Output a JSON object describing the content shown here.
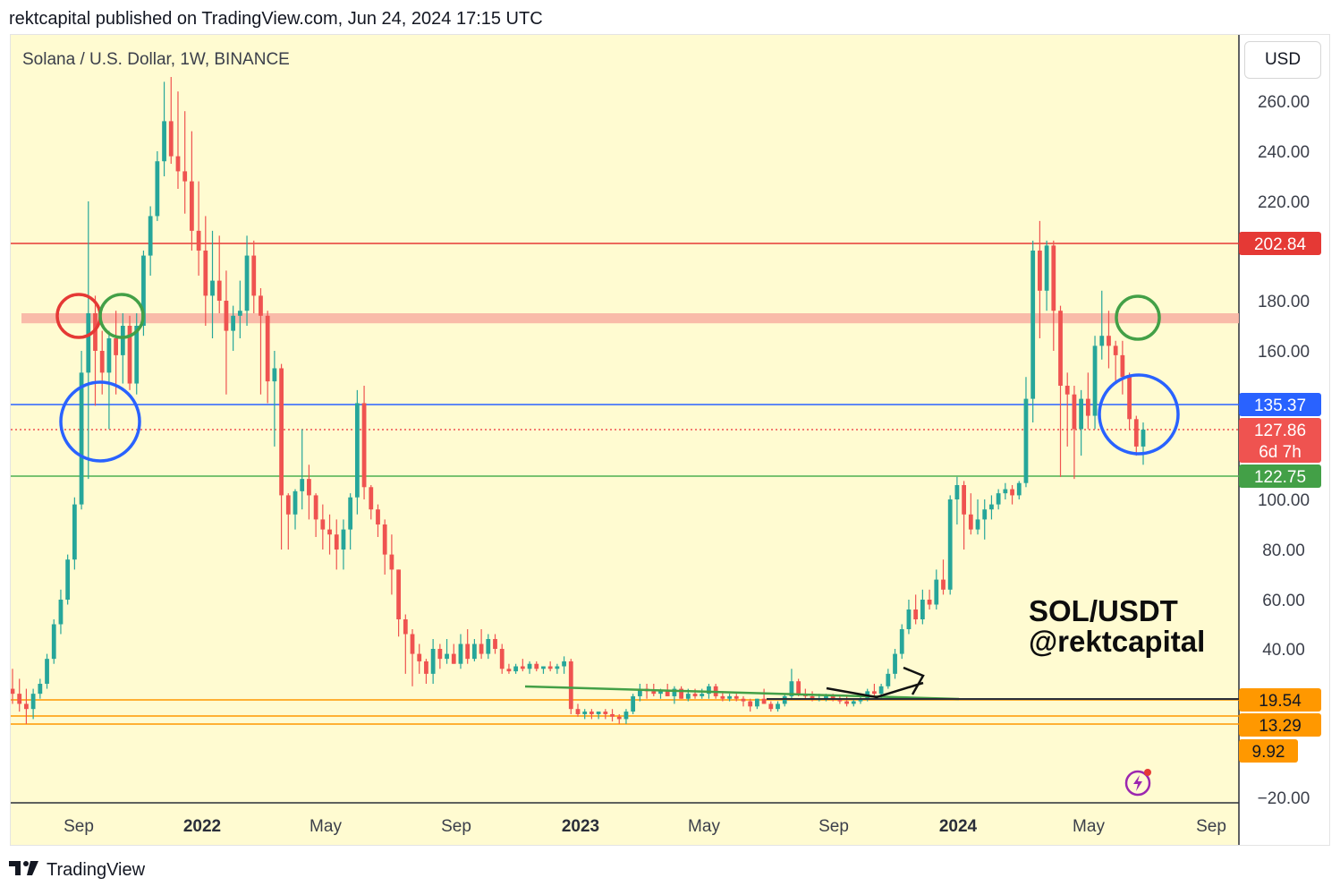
{
  "header": {
    "published_by": "rektcapital published on TradingView.com, Jun 24, 2024 17:15 UTC"
  },
  "symbol_title": "Solana / U.S. Dollar, 1W, BINANCE",
  "currency_button": "USD",
  "watermark": {
    "line1": "SOL/USDT",
    "line2": "@rektcapital"
  },
  "footer": {
    "brand": "TradingView"
  },
  "colors": {
    "background": "#fffbd1",
    "up": "#26a69a",
    "down": "#ef5350",
    "red_line": "#e53935",
    "blue_line": "#2962ff",
    "green_line": "#4caf50",
    "orange_line": "#ff9800",
    "zone": "#f8b4a4"
  },
  "chart_data": {
    "type": "candlestick",
    "title": "Solana / U.S. Dollar, 1W, BINANCE",
    "y_axis": {
      "ticks": [
        "260.00",
        "240.00",
        "220.00",
        "180.00",
        "160.00",
        "100.00",
        "80.00",
        "60.00",
        "40.00",
        "−20.00"
      ],
      "tick_values": [
        260,
        240,
        220,
        180,
        160,
        100,
        80,
        60,
        40,
        -20
      ]
    },
    "x_axis": {
      "ticks": [
        "Sep",
        "2022",
        "May",
        "Sep",
        "2023",
        "May",
        "Sep",
        "2024",
        "May",
        "Sep"
      ],
      "bold": [
        "2022",
        "2023",
        "2024"
      ]
    },
    "price_badges": [
      {
        "label": "202.84",
        "color": "#e53935"
      },
      {
        "label": "135.37",
        "color": "#2962ff"
      },
      {
        "label": "127.86",
        "color": "#ef5350",
        "sub": "6d 7h"
      },
      {
        "label": "122.75",
        "color": "#43a047"
      },
      {
        "label": "19.54",
        "color": "#ff9800"
      },
      {
        "label": "13.29",
        "color": "#ff9800"
      },
      {
        "label": "9.92",
        "color": "#ff9800"
      }
    ],
    "horizontal_levels": [
      {
        "value": 202.84,
        "color": "#e53935"
      },
      {
        "value": 135.37,
        "color": "#2962ff"
      },
      {
        "value": 127.86,
        "color": "#ef5350",
        "style": "dotted"
      },
      {
        "value": 122.75,
        "color": "#4caf50"
      },
      {
        "value": 19.54,
        "color": "#ff9800"
      },
      {
        "value": 13.29,
        "color": "#ff9800"
      },
      {
        "value": 9.92,
        "color": "#ff9800"
      }
    ],
    "resistance_zone": [
      171,
      175
    ],
    "candles": [
      [
        0,
        24,
        32,
        18,
        22
      ],
      [
        1,
        22,
        28,
        15,
        18
      ],
      [
        2,
        18,
        24,
        10,
        16
      ],
      [
        3,
        16,
        24,
        12,
        22
      ],
      [
        4,
        22,
        28,
        20,
        26
      ],
      [
        5,
        26,
        38,
        24,
        36
      ],
      [
        6,
        36,
        52,
        34,
        50
      ],
      [
        7,
        50,
        64,
        46,
        60
      ],
      [
        8,
        60,
        78,
        58,
        76
      ],
      [
        9,
        76,
        102,
        72,
        98
      ],
      [
        10,
        98,
        160,
        96,
        150
      ],
      [
        11,
        150,
        220,
        120,
        175
      ],
      [
        12,
        175,
        182,
        135,
        160
      ],
      [
        13,
        160,
        168,
        140,
        150
      ],
      [
        14,
        150,
        168,
        128,
        165
      ],
      [
        15,
        165,
        176,
        140,
        158
      ],
      [
        16,
        158,
        175,
        145,
        170
      ],
      [
        17,
        170,
        174,
        142,
        145
      ],
      [
        18,
        145,
        175,
        140,
        170
      ],
      [
        19,
        170,
        200,
        166,
        198
      ],
      [
        20,
        198,
        218,
        190,
        214
      ],
      [
        21,
        214,
        240,
        212,
        236
      ],
      [
        22,
        236,
        268,
        230,
        252
      ],
      [
        23,
        252,
        270,
        235,
        238
      ],
      [
        24,
        238,
        264,
        225,
        232
      ],
      [
        25,
        232,
        256,
        215,
        228
      ],
      [
        26,
        228,
        248,
        200,
        208
      ],
      [
        27,
        208,
        228,
        190,
        200
      ],
      [
        28,
        200,
        214,
        170,
        182
      ],
      [
        29,
        182,
        208,
        165,
        188
      ],
      [
        30,
        188,
        206,
        175,
        180
      ],
      [
        31,
        180,
        192,
        140,
        168
      ],
      [
        32,
        168,
        178,
        160,
        174
      ],
      [
        33,
        174,
        188,
        165,
        176
      ],
      [
        34,
        176,
        206,
        170,
        198
      ],
      [
        35,
        198,
        204,
        175,
        182
      ],
      [
        36,
        182,
        185,
        140,
        174
      ],
      [
        37,
        174,
        176,
        136,
        146
      ],
      [
        38,
        146,
        160,
        126,
        152
      ],
      [
        39,
        152,
        154,
        80,
        104
      ],
      [
        40,
        104,
        106,
        80,
        94
      ],
      [
        41,
        94,
        110,
        88,
        108
      ],
      [
        42,
        108,
        128,
        96,
        120
      ],
      [
        43,
        120,
        124,
        92,
        104
      ],
      [
        44,
        104,
        106,
        85,
        92
      ],
      [
        45,
        92,
        98,
        80,
        88
      ],
      [
        46,
        88,
        94,
        78,
        86
      ],
      [
        47,
        86,
        92,
        72,
        80
      ],
      [
        48,
        80,
        92,
        72,
        88
      ],
      [
        49,
        88,
        106,
        80,
        102
      ],
      [
        50,
        102,
        142,
        94,
        136
      ],
      [
        51,
        136,
        144,
        100,
        112
      ],
      [
        52,
        112,
        114,
        92,
        96
      ],
      [
        53,
        96,
        98,
        85,
        90
      ],
      [
        54,
        90,
        92,
        70,
        78
      ],
      [
        55,
        78,
        86,
        62,
        72
      ],
      [
        56,
        72,
        72,
        45,
        52
      ],
      [
        57,
        52,
        54,
        30,
        46
      ],
      [
        58,
        46,
        48,
        25,
        38
      ],
      [
        59,
        38,
        42,
        30,
        35
      ],
      [
        60,
        35,
        36,
        26,
        30
      ],
      [
        61,
        30,
        44,
        26,
        40
      ],
      [
        62,
        40,
        42,
        32,
        36
      ],
      [
        63,
        36,
        44,
        34,
        38
      ],
      [
        64,
        38,
        42,
        34,
        34
      ],
      [
        65,
        34,
        46,
        32,
        42
      ],
      [
        66,
        42,
        48,
        34,
        36
      ],
      [
        67,
        36,
        44,
        35,
        42
      ],
      [
        68,
        42,
        48,
        36,
        38
      ],
      [
        69,
        38,
        46,
        36,
        44
      ],
      [
        70,
        44,
        46,
        38,
        40
      ],
      [
        71,
        40,
        42,
        30,
        32
      ],
      [
        72,
        32,
        34,
        30,
        31
      ],
      [
        73,
        31,
        34,
        30,
        33
      ],
      [
        74,
        33,
        36,
        31,
        32
      ],
      [
        75,
        32,
        35,
        30,
        34
      ],
      [
        76,
        34,
        35,
        31,
        32
      ],
      [
        77,
        32,
        33,
        30,
        33
      ],
      [
        78,
        33,
        35,
        31,
        32
      ],
      [
        79,
        32,
        34,
        30,
        33
      ],
      [
        80,
        33,
        37,
        30,
        35
      ],
      [
        81,
        35,
        36,
        14,
        16
      ],
      [
        82,
        16,
        18,
        13,
        14
      ],
      [
        83,
        14,
        16,
        12,
        15
      ],
      [
        84,
        15,
        16,
        12,
        14
      ],
      [
        85,
        14,
        15,
        12,
        15
      ],
      [
        86,
        15,
        16,
        12,
        14
      ],
      [
        87,
        14,
        16,
        11,
        13
      ],
      [
        88,
        13,
        14,
        10,
        12
      ],
      [
        89,
        12,
        16,
        10,
        15
      ],
      [
        90,
        15,
        22,
        14,
        21
      ],
      [
        91,
        21,
        26,
        19,
        24
      ],
      [
        92,
        24,
        26,
        20,
        23
      ],
      [
        93,
        23,
        26,
        21,
        22
      ],
      [
        94,
        22,
        24,
        20,
        23
      ],
      [
        95,
        23,
        26,
        21,
        21
      ],
      [
        96,
        21,
        25,
        18,
        24
      ],
      [
        97,
        24,
        25,
        20,
        20
      ],
      [
        98,
        20,
        24,
        19,
        22
      ],
      [
        99,
        22,
        24,
        20,
        21
      ],
      [
        100,
        21,
        24,
        20,
        22
      ],
      [
        101,
        22,
        26,
        20,
        25
      ],
      [
        102,
        25,
        26,
        20,
        21
      ],
      [
        103,
        21,
        23,
        19,
        20
      ],
      [
        104,
        20,
        22,
        19,
        21
      ],
      [
        105,
        21,
        22,
        19,
        20
      ],
      [
        106,
        20,
        21,
        17,
        19
      ],
      [
        107,
        19,
        20,
        15,
        17
      ],
      [
        108,
        17,
        20,
        16,
        20
      ],
      [
        109,
        20,
        24,
        18,
        18
      ],
      [
        110,
        18,
        19,
        15,
        16
      ],
      [
        111,
        16,
        19,
        15,
        18
      ],
      [
        112,
        18,
        22,
        17,
        21
      ],
      [
        113,
        21,
        32,
        20,
        27
      ],
      [
        114,
        27,
        28,
        21,
        22
      ],
      [
        115,
        22,
        24,
        20,
        21
      ],
      [
        116,
        21,
        23,
        19,
        20
      ],
      [
        117,
        20,
        22,
        19,
        20
      ],
      [
        118,
        20,
        22,
        19,
        21
      ],
      [
        119,
        21,
        22,
        19,
        20
      ],
      [
        120,
        20,
        21,
        18,
        19
      ],
      [
        121,
        19,
        21,
        17,
        18
      ],
      [
        122,
        18,
        20,
        17,
        19
      ],
      [
        123,
        19,
        22,
        18,
        20
      ],
      [
        124,
        20,
        24,
        19,
        23
      ],
      [
        125,
        23,
        26,
        21,
        22
      ],
      [
        126,
        22,
        26,
        20,
        25
      ],
      [
        127,
        25,
        32,
        24,
        30
      ],
      [
        128,
        30,
        40,
        28,
        38
      ],
      [
        129,
        38,
        50,
        36,
        48
      ],
      [
        130,
        48,
        60,
        46,
        56
      ],
      [
        131,
        56,
        62,
        50,
        52
      ],
      [
        132,
        52,
        64,
        50,
        60
      ],
      [
        133,
        60,
        64,
        56,
        58
      ],
      [
        134,
        58,
        72,
        56,
        68
      ],
      [
        135,
        68,
        76,
        62,
        64
      ],
      [
        136,
        64,
        104,
        62,
        100
      ],
      [
        137,
        100,
        122,
        90,
        114
      ],
      [
        138,
        114,
        118,
        80,
        94
      ],
      [
        139,
        94,
        106,
        86,
        88
      ],
      [
        140,
        88,
        100,
        86,
        92
      ],
      [
        141,
        92,
        100,
        84,
        96
      ],
      [
        142,
        96,
        104,
        92,
        98
      ],
      [
        143,
        98,
        110,
        96,
        106
      ],
      [
        144,
        106,
        116,
        100,
        110
      ],
      [
        145,
        110,
        114,
        98,
        104
      ],
      [
        146,
        104,
        118,
        100,
        116
      ],
      [
        147,
        116,
        148,
        112,
        138
      ],
      [
        148,
        138,
        204,
        130,
        200
      ],
      [
        149,
        200,
        212,
        165,
        184
      ],
      [
        150,
        184,
        204,
        176,
        202
      ],
      [
        151,
        202,
        204,
        160,
        176
      ],
      [
        152,
        176,
        178,
        122,
        144
      ],
      [
        153,
        144,
        150,
        126,
        140
      ],
      [
        154,
        140,
        144,
        120,
        128
      ],
      [
        155,
        128,
        142,
        125,
        138
      ],
      [
        156,
        138,
        150,
        128,
        132
      ],
      [
        157,
        132,
        166,
        128,
        162
      ],
      [
        158,
        162,
        184,
        156,
        166
      ],
      [
        159,
        166,
        176,
        152,
        162
      ],
      [
        160,
        162,
        164,
        145,
        158
      ],
      [
        161,
        158,
        164,
        140,
        148
      ],
      [
        162,
        148,
        150,
        128,
        131
      ],
      [
        163,
        131,
        132,
        125,
        126
      ],
      [
        164,
        126,
        130,
        124,
        127.86
      ]
    ],
    "annotation_circles": [
      {
        "color": "#e53935",
        "label": "red"
      },
      {
        "color": "#43a047",
        "label": "green"
      },
      {
        "color": "#2962ff",
        "label": "blue"
      },
      {
        "color": "#43a047",
        "label": "green"
      },
      {
        "color": "#2962ff",
        "label": "blue"
      }
    ]
  }
}
